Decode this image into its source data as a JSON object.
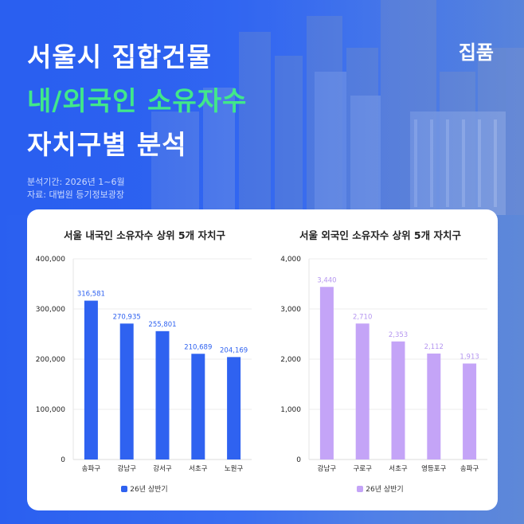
{
  "brand": "집품",
  "title": {
    "line1": "서울시 집합건물",
    "line2": "내/외국인 소유자수",
    "line3": "자치구별 분석"
  },
  "meta": {
    "period": "분석기간: 2026년 1~6월",
    "source": "자료: 대법원 등기정보광장"
  },
  "colors": {
    "background": "#2c63ec",
    "accent": "#41e88a",
    "domestic_bar": "#2f62f0",
    "foreign_bar": "#c4a4f7"
  },
  "chart_data": [
    {
      "type": "bar",
      "title": "서울 내국인 소유자수 상위 5개 자치구",
      "categories": [
        "송파구",
        "강남구",
        "강서구",
        "서초구",
        "노원구"
      ],
      "series": [
        {
          "name": "26년 상반기",
          "values": [
            316581,
            270935,
            255801,
            210689,
            204169
          ]
        }
      ],
      "value_labels": [
        "316,581",
        "270,935",
        "255,801",
        "210,689",
        "204,169"
      ],
      "ylim": [
        0,
        400000
      ],
      "yticks": [
        0,
        100000,
        200000,
        300000,
        400000
      ],
      "ytick_labels": [
        "0",
        "100,000",
        "200,000",
        "300,000",
        "400,000"
      ],
      "grid": true,
      "legend": "bottom-center",
      "color": "#2f62f0",
      "label_color": "#2f62f0"
    },
    {
      "type": "bar",
      "title": "서울 외국인 소유자수 상위 5개 자치구",
      "categories": [
        "강남구",
        "구로구",
        "서초구",
        "영등포구",
        "송파구"
      ],
      "series": [
        {
          "name": "26년 상반기",
          "values": [
            3440,
            2710,
            2353,
            2112,
            1913
          ]
        }
      ],
      "value_labels": [
        "3,440",
        "2,710",
        "2,353",
        "2,112",
        "1,913"
      ],
      "ylim": [
        0,
        4000
      ],
      "yticks": [
        0,
        1000,
        2000,
        3000,
        4000
      ],
      "ytick_labels": [
        "0",
        "1,000",
        "2,000",
        "3,000",
        "4,000"
      ],
      "grid": true,
      "legend": "bottom-center",
      "color": "#c4a4f7",
      "label_color": "#b596f0"
    }
  ]
}
